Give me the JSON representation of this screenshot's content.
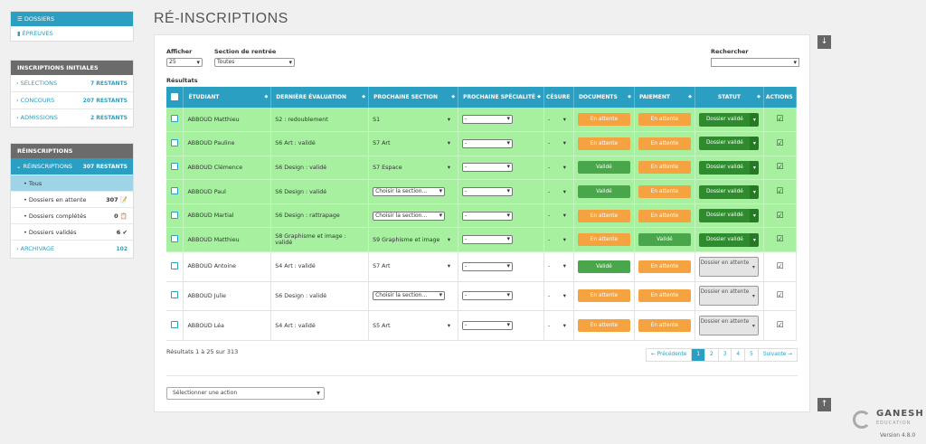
{
  "sidebar": {
    "top": [
      {
        "label": "DOSSIERS",
        "icon": "list-icon"
      },
      {
        "label": "ÉPREUVES",
        "icon": "bar-chart-icon"
      }
    ],
    "initial": {
      "title": "INSCRIPTIONS INITIALES",
      "items": [
        {
          "label": "SÉLECTIONS",
          "count": "7 RESTANTS"
        },
        {
          "label": "CONCOURS",
          "count": "207 RESTANTS"
        },
        {
          "label": "ADMISSIONS",
          "count": "2 RESTANTS"
        }
      ]
    },
    "reinscriptions": {
      "title": "RÉINSCRIPTIONS",
      "active": {
        "label": "RÉINSCRIPTIONS",
        "count": "307 RESTANTS"
      },
      "subs": [
        {
          "label": "Tous",
          "count": ""
        },
        {
          "label": "Dossiers en attente",
          "count": "307"
        },
        {
          "label": "Dossiers complétés",
          "count": "0"
        },
        {
          "label": "Dossiers validés",
          "count": "6"
        }
      ],
      "archive": {
        "label": "ARCHIVAGE",
        "count": "102"
      }
    }
  },
  "page": {
    "title": "RÉ-INSCRIPTIONS"
  },
  "filters": {
    "afficher_label": "Afficher",
    "afficher_value": "25",
    "section_label": "Section de rentrée",
    "section_value": "Toutes",
    "search_label": "Rechercher",
    "results_label": "Résultats"
  },
  "table": {
    "headers": [
      "ÉTUDIANT",
      "DERNIÈRE ÉVALUATION",
      "PROCHAINE SECTION",
      "PROCHAINE SPÉCIALITÉ",
      "CÉSURE",
      "DOCUMENTS",
      "PAIEMENT",
      "STATUT",
      "ACTIONS"
    ],
    "rows": [
      {
        "student": "ABBOUD Matthieu",
        "eval": "S2 : redoublement",
        "section": "S1",
        "specialite": "-",
        "cesure": "-",
        "documents": "En attente",
        "paiement": "En attente",
        "statut": "Dossier validé",
        "validated": true
      },
      {
        "student": "ABBOUD Pauline",
        "eval": "S6 Art : validé",
        "section": "S7 Art",
        "specialite": "-",
        "cesure": "-",
        "documents": "En attente",
        "paiement": "En attente",
        "statut": "Dossier validé",
        "validated": true
      },
      {
        "student": "ABBOUD Clémence",
        "eval": "S6 Design : validé",
        "section": "S7 Espace",
        "specialite": "-",
        "cesure": "-",
        "documents": "Validé",
        "paiement": "En attente",
        "statut": "Dossier validé",
        "validated": true
      },
      {
        "student": "ABBOUD Paul",
        "eval": "S6 Design : validé",
        "section": "Choisir la section...",
        "specialite": "-",
        "cesure": "-",
        "documents": "Validé",
        "paiement": "En attente",
        "statut": "Dossier validé",
        "validated": true
      },
      {
        "student": "ABBOUD Martial",
        "eval": "S6 Design : rattrapage",
        "section": "Choisir la section...",
        "specialite": "-",
        "cesure": "-",
        "documents": "En attente",
        "paiement": "En attente",
        "statut": "Dossier validé",
        "validated": true
      },
      {
        "student": "ABBOUD Matthieu",
        "eval": "S8 Graphisme et image : validé",
        "section": "S9 Graphisme et image",
        "specialite": "-",
        "cesure": "-",
        "documents": "En attente",
        "paiement": "Validé",
        "statut": "Dossier validé",
        "validated": true
      },
      {
        "student": "ABBOUD Antoine",
        "eval": "S4 Art : validé",
        "section": "S7 Art",
        "specialite": "-",
        "cesure": "-",
        "documents": "Validé",
        "paiement": "En attente",
        "statut": "Dossier en attente",
        "validated": false
      },
      {
        "student": "ABBOUD Julie",
        "eval": "S6 Design : validé",
        "section": "Choisir la section...",
        "specialite": "-",
        "cesure": "-",
        "documents": "En attente",
        "paiement": "En attente",
        "statut": "Dossier en attente",
        "validated": false
      },
      {
        "student": "ABBOUD Léa",
        "eval": "S4 Art : validé",
        "section": "S5 Art",
        "specialite": "-",
        "cesure": "-",
        "documents": "En attente",
        "paiement": "En attente",
        "statut": "Dossier en attente",
        "validated": false
      }
    ]
  },
  "footer": {
    "results_text": "Résultats 1 à 25 sur 313",
    "pager": [
      "← Précédente",
      "1",
      "2",
      "3",
      "4",
      "5",
      "Suivante →"
    ],
    "current_page": "1",
    "action_placeholder": "Sélectionner une action"
  },
  "brand": {
    "name": "GANESH",
    "sub": "EDUCATION",
    "version": "Version 4.8.0"
  },
  "colors": {
    "accent": "#2a9fc1",
    "valid_row": "#a6f0a0",
    "orange": "#f4a340",
    "green": "#4aa64a"
  }
}
